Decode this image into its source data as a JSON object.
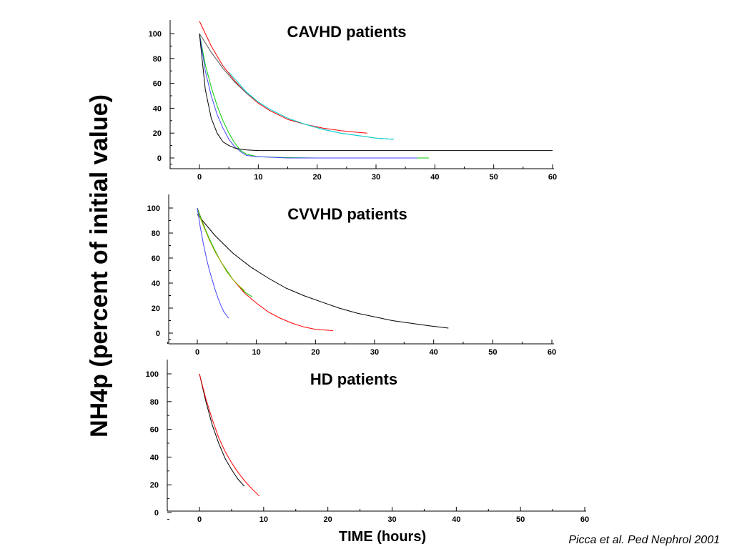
{
  "figure": {
    "ylabel": "NH4p (percent of initial value)",
    "xlabel": "TIME (hours)",
    "citation": "Picca et al. Ped Nephrol 2001"
  },
  "chart_data": [
    {
      "type": "line",
      "title": "CAVHD patients",
      "xlabel": "TIME (hours)",
      "ylabel": "NH4p (percent of initial value)",
      "xlim": [
        -5,
        60
      ],
      "ylim": [
        -8,
        110
      ],
      "xticks": [
        0,
        10,
        20,
        30,
        40,
        50,
        60
      ],
      "yticks": [
        0,
        20,
        40,
        60,
        80,
        100
      ],
      "grid": false,
      "series": [
        {
          "color": "#ff0000",
          "x": [
            0,
            2,
            4,
            6,
            8,
            10,
            12,
            15,
            18,
            21,
            24,
            26,
            28.5
          ],
          "y": [
            110,
            90,
            74,
            62,
            52,
            44,
            38,
            31,
            27,
            24,
            22,
            21,
            20
          ]
        },
        {
          "color": "#555555",
          "x": [
            0,
            2,
            4,
            6,
            8,
            10,
            12,
            15,
            18,
            21,
            24,
            27,
            30,
            33
          ],
          "y": [
            100,
            85,
            72,
            61,
            52,
            45,
            39,
            32,
            27,
            23,
            20,
            18,
            16,
            15
          ]
        },
        {
          "color": "#00dddd",
          "x": [
            5,
            8,
            10,
            12,
            15,
            18,
            21,
            24,
            27,
            30,
            33
          ],
          "y": [
            69,
            53,
            45,
            39,
            32,
            27,
            23,
            20,
            18,
            16,
            15
          ]
        },
        {
          "color": "#00cc00",
          "x": [
            0,
            1,
            2,
            3,
            4,
            5,
            6,
            7,
            8,
            10,
            15,
            20,
            30,
            39
          ],
          "y": [
            100,
            75,
            57,
            42,
            30,
            20,
            12,
            6,
            3,
            1,
            0.3,
            0,
            0,
            0
          ]
        },
        {
          "color": "#4444ff",
          "x": [
            0,
            1,
            2,
            3,
            4,
            5,
            6,
            7,
            8,
            10,
            15,
            20,
            30,
            37
          ],
          "y": [
            100,
            70,
            50,
            35,
            24,
            15,
            9,
            5,
            2,
            1,
            0,
            0,
            0,
            0
          ]
        },
        {
          "color": "#000000",
          "x": [
            0,
            1,
            2,
            3,
            4,
            5,
            6,
            7,
            8,
            10,
            20,
            40,
            60
          ],
          "y": [
            100,
            55,
            32,
            20,
            13,
            10,
            8,
            7,
            6.5,
            6,
            6,
            6,
            6
          ]
        }
      ]
    },
    {
      "type": "line",
      "title": "CVVHD patients",
      "xlabel": "TIME (hours)",
      "ylabel": "NH4p (percent of initial value)",
      "xlim": [
        -5,
        60
      ],
      "ylim": [
        -8,
        110
      ],
      "xticks": [
        0,
        10,
        20,
        30,
        40,
        50,
        60
      ],
      "yticks": [
        0,
        20,
        40,
        60,
        80,
        100
      ],
      "grid": false,
      "series": [
        {
          "color": "#000000",
          "x": [
            0,
            3,
            6,
            9,
            12,
            15,
            18,
            21,
            24,
            27,
            30,
            33,
            36,
            39,
            42.5
          ],
          "y": [
            95,
            78,
            64,
            53,
            44,
            36,
            30,
            25,
            20,
            16,
            13,
            10,
            8,
            6,
            4
          ]
        },
        {
          "color": "#ff0000",
          "x": [
            0,
            2,
            4,
            6,
            8,
            10,
            12,
            14,
            16,
            18,
            20,
            23
          ],
          "y": [
            100,
            75,
            57,
            43,
            32,
            24,
            17,
            12,
            8,
            5,
            3,
            2
          ]
        },
        {
          "color": "#00cc00",
          "x": [
            0,
            1,
            2,
            3,
            4,
            5,
            6,
            7,
            8,
            9.3
          ],
          "y": [
            100,
            87,
            76,
            66,
            57,
            50,
            43,
            38,
            33,
            29
          ]
        },
        {
          "color": "#aaaa00",
          "x": [
            0,
            1,
            2,
            3,
            4,
            5,
            6,
            7,
            8
          ],
          "y": [
            98,
            86,
            75,
            65,
            57,
            49,
            43,
            38,
            34
          ]
        },
        {
          "color": "#4444ff",
          "x": [
            0,
            0.5,
            1,
            1.5,
            2,
            2.5,
            3,
            3.5,
            4,
            4.5,
            5.3
          ],
          "y": [
            100,
            85,
            72,
            61,
            51,
            43,
            35,
            28,
            22,
            17,
            12
          ]
        }
      ]
    },
    {
      "type": "line",
      "title": "HD patients",
      "xlabel": "TIME (hours)",
      "ylabel": "NH4p (percent of initial value)",
      "xlim": [
        -5,
        60
      ],
      "ylim": [
        -8,
        110
      ],
      "xticks": [
        0,
        10,
        20,
        30,
        40,
        50,
        60
      ],
      "yticks": [
        0,
        20,
        40,
        60,
        80,
        100
      ],
      "grid": false,
      "series": [
        {
          "color": "#000000",
          "x": [
            0,
            1,
            2,
            3,
            4,
            5,
            6,
            7
          ],
          "y": [
            100,
            80,
            63,
            50,
            39,
            31,
            24,
            19
          ]
        },
        {
          "color": "#ff0000",
          "x": [
            0,
            1,
            2,
            3,
            4,
            5,
            6,
            7,
            8,
            9.3
          ],
          "y": [
            100,
            82,
            67,
            54,
            44,
            36,
            29,
            23,
            18,
            12
          ]
        }
      ]
    }
  ]
}
